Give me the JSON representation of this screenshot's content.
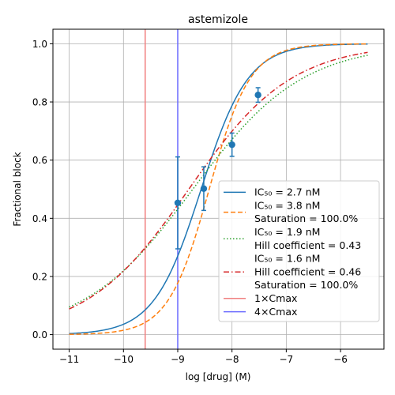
{
  "chart_data": {
    "type": "line",
    "title": "astemizole",
    "xlabel": "log [drug] (M)",
    "ylabel": "Fractional block",
    "xlim": [
      -11.3,
      -5.2
    ],
    "ylim": [
      -0.05,
      1.05
    ],
    "xticks": [
      -11,
      -10,
      -9,
      -8,
      -7,
      -6
    ],
    "xtick_labels": [
      "−11",
      "−10",
      "−9",
      "−8",
      "−7",
      "−6"
    ],
    "yticks": [
      0.0,
      0.2,
      0.4,
      0.6,
      0.8,
      1.0
    ],
    "ytick_labels": [
      "0.0",
      "0.2",
      "0.4",
      "0.6",
      "0.8",
      "1.0"
    ],
    "grid": true,
    "legend_position": "lower right",
    "x_range": [
      -11,
      -5.5
    ],
    "series": [
      {
        "name": "IC50 = 2.7 nM",
        "label_lines": [
          "IC₅₀ = 2.7 nM"
        ],
        "ic50_nM": 2.7,
        "hill": 1.0,
        "saturation": 1.0,
        "color": "#1f77b4",
        "style": "solid"
      },
      {
        "name": "IC50 = 3.8 nM, Saturation = 100.0%",
        "label_lines": [
          "IC₅₀ = 3.8 nM",
          "Saturation = 100.0%"
        ],
        "ic50_nM": 3.8,
        "hill": 1.15,
        "saturation": 1.0,
        "color": "#ff7f0e",
        "style": "dashed"
      },
      {
        "name": "IC50 = 1.9 nM, Hill coefficient = 0.43",
        "label_lines": [
          "IC₅₀ = 1.9 nM",
          "Hill coefficient = 0.43"
        ],
        "ic50_nM": 1.9,
        "hill": 0.43,
        "saturation": 1.0,
        "color": "#2ca02c",
        "style": "dotted"
      },
      {
        "name": "IC50 = 1.6 nM, Hill coefficient = 0.46, Saturation = 100.0%",
        "label_lines": [
          "IC₅₀ = 1.6 nM",
          "Hill coefficient = 0.46",
          "Saturation = 100.0%"
        ],
        "ic50_nM": 1.6,
        "hill": 0.46,
        "saturation": 1.0,
        "color": "#d62728",
        "style": "dashdot"
      }
    ],
    "vlines": [
      {
        "name": "1×Cmax",
        "x": -9.6,
        "color": "#f08080"
      },
      {
        "name": "4×Cmax",
        "x": -9.0,
        "color": "#6b6bff"
      }
    ],
    "points": {
      "color": "#1f77b4",
      "data": [
        {
          "x": -9.0,
          "y": 0.453,
          "err": 0.158
        },
        {
          "x": -8.52,
          "y": 0.502,
          "err": 0.075
        },
        {
          "x": -8.0,
          "y": 0.653,
          "err": 0.04
        },
        {
          "x": -7.52,
          "y": 0.824,
          "err": 0.025
        }
      ]
    }
  }
}
